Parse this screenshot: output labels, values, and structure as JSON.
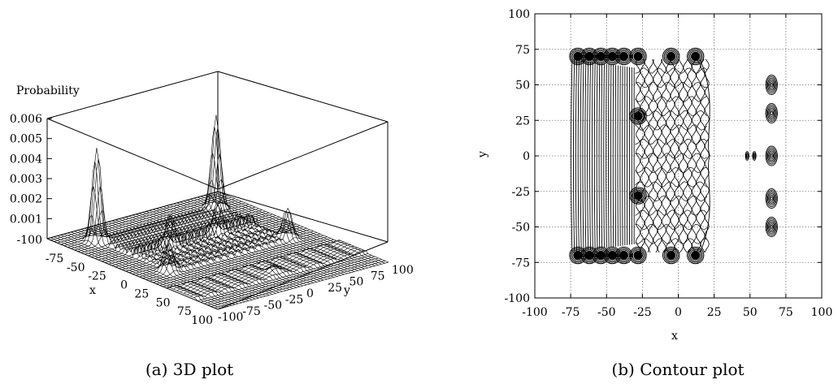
{
  "captions": {
    "left": "(a) 3D plot",
    "right": "(b) Contour plot"
  },
  "chart_data": [
    {
      "type": "surface",
      "title": "",
      "zlabel": "Probability",
      "xlabel": "x",
      "ylabel": "y",
      "x_ticks": [
        "-100",
        "-75",
        "-50",
        "-25",
        "0",
        "25",
        "50",
        "75",
        "100"
      ],
      "y_ticks": [
        "-100",
        "-75",
        "-50",
        "-25",
        "0",
        "25",
        "50",
        "75",
        "100"
      ],
      "z_ticks": [
        "0.001",
        "0.002",
        "0.003",
        "0.004",
        "0.005",
        "0.006"
      ],
      "xlim": [
        -100,
        100
      ],
      "ylim": [
        -100,
        100
      ],
      "zlim": [
        0,
        0.006
      ],
      "peaks": [
        {
          "x": -72,
          "y": 70,
          "z": 0.0046
        },
        {
          "x": -72,
          "y": -70,
          "z": 0.0046
        },
        {
          "x": 12,
          "y": 70,
          "z": 0.0015
        },
        {
          "x": 12,
          "y": -70,
          "z": 0.0015
        },
        {
          "x": -28,
          "y": 28,
          "z": 0.0012
        },
        {
          "x": -28,
          "y": -28,
          "z": 0.0012
        },
        {
          "x": 65,
          "y": 0,
          "z": 0.0004
        }
      ]
    },
    {
      "type": "contour",
      "title": "",
      "xlabel": "x",
      "ylabel": "y",
      "x_ticks": [
        "-100",
        "-75",
        "-50",
        "-25",
        "0",
        "25",
        "50",
        "75",
        "100"
      ],
      "y_ticks": [
        "-100",
        "-75",
        "-50",
        "-25",
        "0",
        "25",
        "50",
        "75",
        "100"
      ],
      "xlim": [
        -100,
        100
      ],
      "ylim": [
        -100,
        100
      ],
      "grid": true,
      "blobs": [
        {
          "x": -70,
          "y": 70
        },
        {
          "x": -62,
          "y": 70
        },
        {
          "x": -54,
          "y": 70
        },
        {
          "x": -46,
          "y": 70
        },
        {
          "x": -38,
          "y": 70
        },
        {
          "x": -28,
          "y": 70
        },
        {
          "x": -5,
          "y": 70
        },
        {
          "x": 12,
          "y": 70
        },
        {
          "x": -70,
          "y": -70
        },
        {
          "x": -62,
          "y": -70
        },
        {
          "x": -54,
          "y": -70
        },
        {
          "x": -46,
          "y": -70
        },
        {
          "x": -38,
          "y": -70
        },
        {
          "x": -28,
          "y": -70
        },
        {
          "x": -5,
          "y": -70
        },
        {
          "x": 12,
          "y": -70
        },
        {
          "x": -28,
          "y": 28
        },
        {
          "x": -28,
          "y": -28
        }
      ],
      "right_features": [
        {
          "x": 65,
          "y": 50
        },
        {
          "x": 65,
          "y": 30
        },
        {
          "x": 65,
          "y": 0
        },
        {
          "x": 65,
          "y": -30
        },
        {
          "x": 65,
          "y": -50
        },
        {
          "x": 48,
          "y": 0
        },
        {
          "x": 53,
          "y": 0
        }
      ]
    }
  ]
}
